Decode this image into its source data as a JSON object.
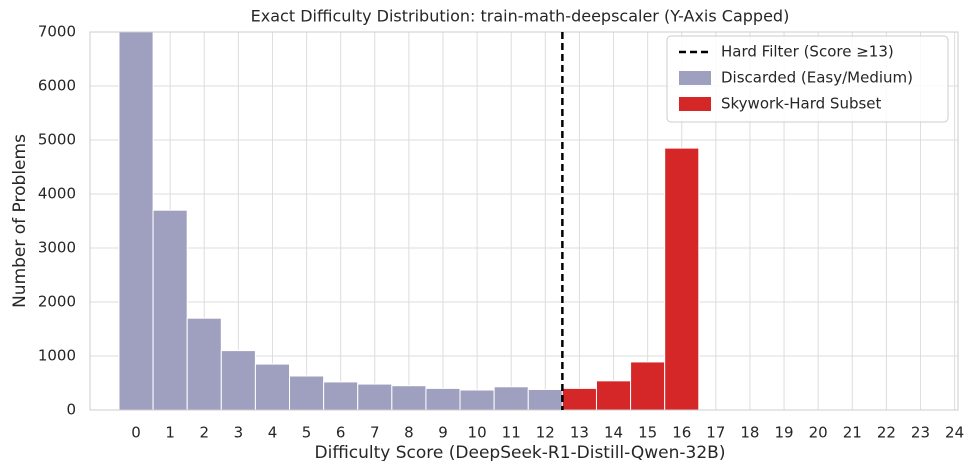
{
  "chart_data": {
    "type": "histogram",
    "title": "Exact Difficulty Distribution: train-math-deepscaler (Y-Axis Capped)",
    "xlabel": "Difficulty Score (DeepSeek-R1-Distill-Qwen-32B)",
    "ylabel": "Number of Problems",
    "xlim": [
      -1.35,
      24.1
    ],
    "ylim": [
      0,
      7000
    ],
    "xticks": [
      0,
      1,
      2,
      3,
      4,
      5,
      6,
      7,
      8,
      9,
      10,
      11,
      12,
      13,
      14,
      15,
      16,
      17,
      18,
      19,
      20,
      21,
      22,
      23,
      24
    ],
    "yticks": [
      0,
      1000,
      2000,
      3000,
      4000,
      5000,
      6000,
      7000
    ],
    "grid": true,
    "legend": "upper right",
    "threshold": {
      "value": 12.5,
      "label": "Hard Filter (Score  ≥13)",
      "color": "#000000"
    },
    "series": [
      {
        "name": "Discarded (Easy/Medium)",
        "color": "#9fa0c0",
        "bins": [
          -0.5,
          0.5,
          1.5,
          2.5,
          3.5,
          4.5,
          5.5,
          6.5,
          7.5,
          8.5,
          9.5,
          10.5,
          11.5,
          12.5
        ],
        "values": [
          7000,
          3700,
          1700,
          1100,
          850,
          630,
          520,
          480,
          450,
          400,
          370,
          430,
          380
        ]
      },
      {
        "name": "Skywork-Hard Subset",
        "color": "#d62728",
        "bins": [
          12.5,
          13.5,
          14.5,
          15.5,
          16.5
        ],
        "values": [
          400,
          540,
          890,
          4850
        ]
      }
    ]
  }
}
